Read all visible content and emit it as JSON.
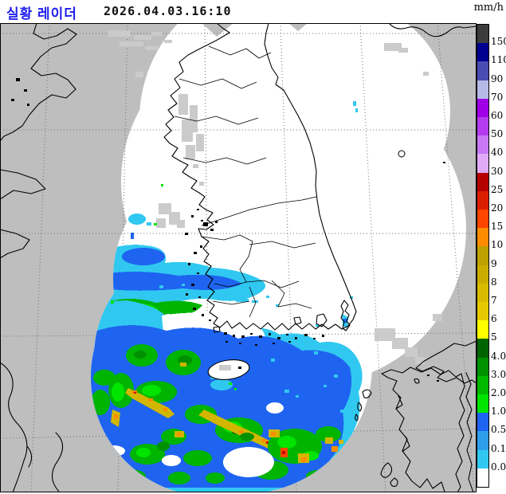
{
  "header": {
    "title": "실황 레이더",
    "datetime": "2026.04.03.16:10",
    "unit_label": "mm/h"
  },
  "legend": {
    "unit": "mm/h",
    "segments": [
      {
        "color": "#3C3C3C",
        "label": "150"
      },
      {
        "color": "#000090",
        "label": "110"
      },
      {
        "color": "#4A4CB4",
        "label": "90"
      },
      {
        "color": "#B4BAE4",
        "label": "70"
      },
      {
        "color": "#A000E6",
        "label": "60"
      },
      {
        "color": "#B43CEE",
        "label": "50"
      },
      {
        "color": "#C878F2",
        "label": "40"
      },
      {
        "color": "#E0AAF8",
        "label": "30"
      },
      {
        "color": "#B40000",
        "label": "25"
      },
      {
        "color": "#DC1E00",
        "label": "20"
      },
      {
        "color": "#FF4600",
        "label": "15"
      },
      {
        "color": "#FF8C00",
        "label": "10"
      },
      {
        "color": "#BEA000",
        "label": "9"
      },
      {
        "color": "#CBAD00",
        "label": "8"
      },
      {
        "color": "#D8BB00",
        "label": "7"
      },
      {
        "color": "#E6C900",
        "label": "6"
      },
      {
        "color": "#FFFF00",
        "label": "5"
      },
      {
        "color": "#006400",
        "label": "4.0"
      },
      {
        "color": "#009100",
        "label": "3.0"
      },
      {
        "color": "#00B900",
        "label": "2.0"
      },
      {
        "color": "#00E400",
        "label": "1.0"
      },
      {
        "color": "#1E64F0",
        "label": "0.5"
      },
      {
        "color": "#2D9FE8",
        "label": "0.1"
      },
      {
        "color": "#30C8F0",
        "label": "0.0"
      },
      {
        "color": "#FFFFFF",
        "label": ""
      }
    ]
  },
  "map": {
    "background_color": "#BEBEBE",
    "coverage_color": "#FFFFFF",
    "coastline_color": "#000000",
    "grid_color": "#6E6E6E",
    "clutter_color": "#CBCBCB",
    "echo_palette": {
      "cyan": "#30C8F0",
      "blue": "#1E64F0",
      "green_light": "#00E400",
      "green": "#00B400",
      "green_dark": "#009100",
      "green_vdark": "#006400",
      "gold": "#D2B600",
      "olive": "#BEA000",
      "orange": "#FF8C00",
      "orange_red": "#FF4600",
      "red": "#C80000"
    }
  }
}
